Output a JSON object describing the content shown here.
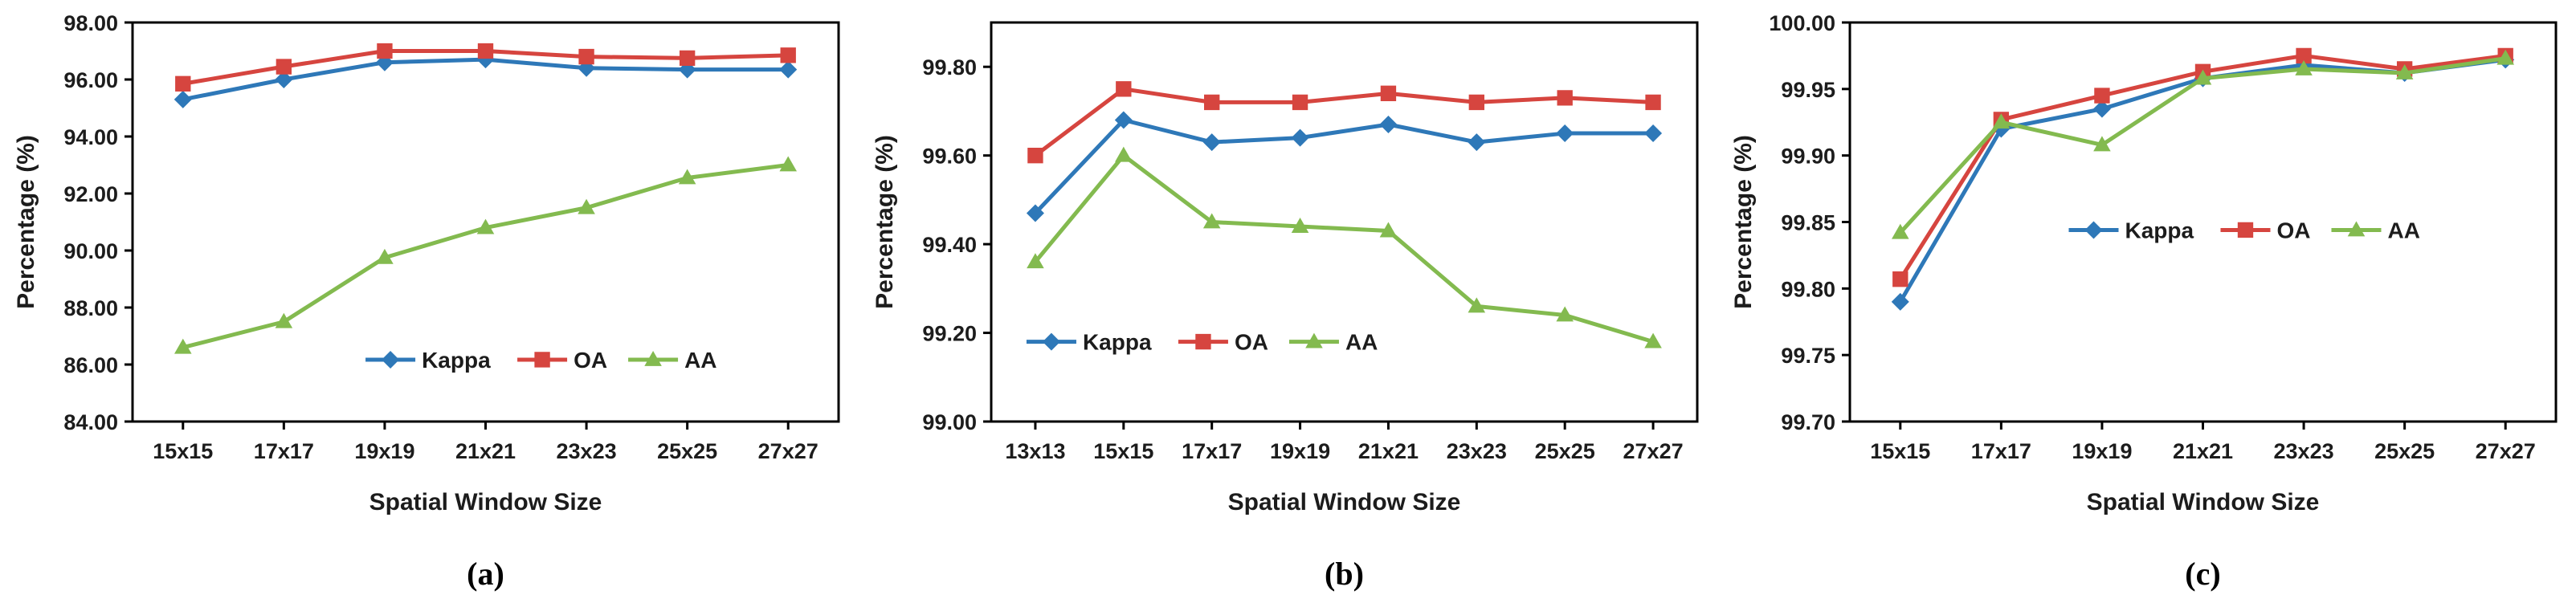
{
  "page": {
    "background": "#ffffff"
  },
  "chart_data": [
    {
      "caption": "(a)",
      "type": "line",
      "xlabel": "Spatial Window Size",
      "ylabel": "Percentage (%)",
      "categories": [
        "15x15",
        "17x17",
        "19x19",
        "21x21",
        "23x23",
        "25x25",
        "27x27"
      ],
      "ylim": [
        84.0,
        98.0
      ],
      "ytick_step": 2.0,
      "grid": false,
      "legend_position": {
        "x": 0.33,
        "y": 0.845
      },
      "series": [
        {
          "name": "Kappa",
          "marker": "diamond",
          "color": "#2E78B8",
          "values": [
            95.3,
            96.0,
            96.6,
            96.7,
            96.4,
            96.35,
            96.35
          ]
        },
        {
          "name": "OA",
          "marker": "square",
          "color": "#D6453F",
          "values": [
            95.85,
            96.45,
            97.0,
            97.0,
            96.8,
            96.75,
            96.85
          ]
        },
        {
          "name": "AA",
          "marker": "triangle",
          "color": "#83BA4F",
          "values": [
            86.6,
            87.5,
            89.75,
            90.8,
            91.5,
            92.55,
            93.0
          ]
        }
      ]
    },
    {
      "caption": "(b)",
      "type": "line",
      "xlabel": "Spatial Window Size",
      "ylabel": "Percentage (%)",
      "categories": [
        "13x13",
        "15x15",
        "17x17",
        "19x19",
        "21x21",
        "23x23",
        "25x25",
        "27x27"
      ],
      "ylim": [
        99.0,
        99.9
      ],
      "ytick_step": 0.2,
      "grid": false,
      "legend_position": {
        "x": 0.05,
        "y": 0.8
      },
      "series": [
        {
          "name": "Kappa",
          "marker": "diamond",
          "color": "#2E78B8",
          "values": [
            99.47,
            99.68,
            99.63,
            99.64,
            99.67,
            99.63,
            99.65,
            99.65
          ]
        },
        {
          "name": "OA",
          "marker": "square",
          "color": "#D6453F",
          "values": [
            99.6,
            99.75,
            99.72,
            99.72,
            99.74,
            99.72,
            99.73,
            99.72
          ]
        },
        {
          "name": "AA",
          "marker": "triangle",
          "color": "#83BA4F",
          "values": [
            99.36,
            99.6,
            99.45,
            99.44,
            99.43,
            99.26,
            99.24,
            99.18
          ]
        }
      ]
    },
    {
      "caption": "(c)",
      "type": "line",
      "xlabel": "Spatial Window Size",
      "ylabel": "Percentage (%)",
      "categories": [
        "15x15",
        "17x17",
        "19x19",
        "21x21",
        "23x23",
        "25x25",
        "27x27"
      ],
      "ylim": [
        99.7,
        100.0
      ],
      "ytick_step": 0.05,
      "grid": false,
      "legend_position": {
        "x": 0.31,
        "y": 0.52
      },
      "series": [
        {
          "name": "Kappa",
          "marker": "diamond",
          "color": "#2E78B8",
          "values": [
            99.79,
            99.92,
            99.935,
            99.958,
            99.968,
            99.962,
            99.972
          ]
        },
        {
          "name": "OA",
          "marker": "square",
          "color": "#D6453F",
          "values": [
            99.807,
            99.927,
            99.945,
            99.963,
            99.975,
            99.965,
            99.975
          ]
        },
        {
          "name": "AA",
          "marker": "triangle",
          "color": "#83BA4F",
          "values": [
            99.842,
            99.925,
            99.908,
            99.958,
            99.965,
            99.962,
            99.973
          ]
        }
      ]
    }
  ]
}
